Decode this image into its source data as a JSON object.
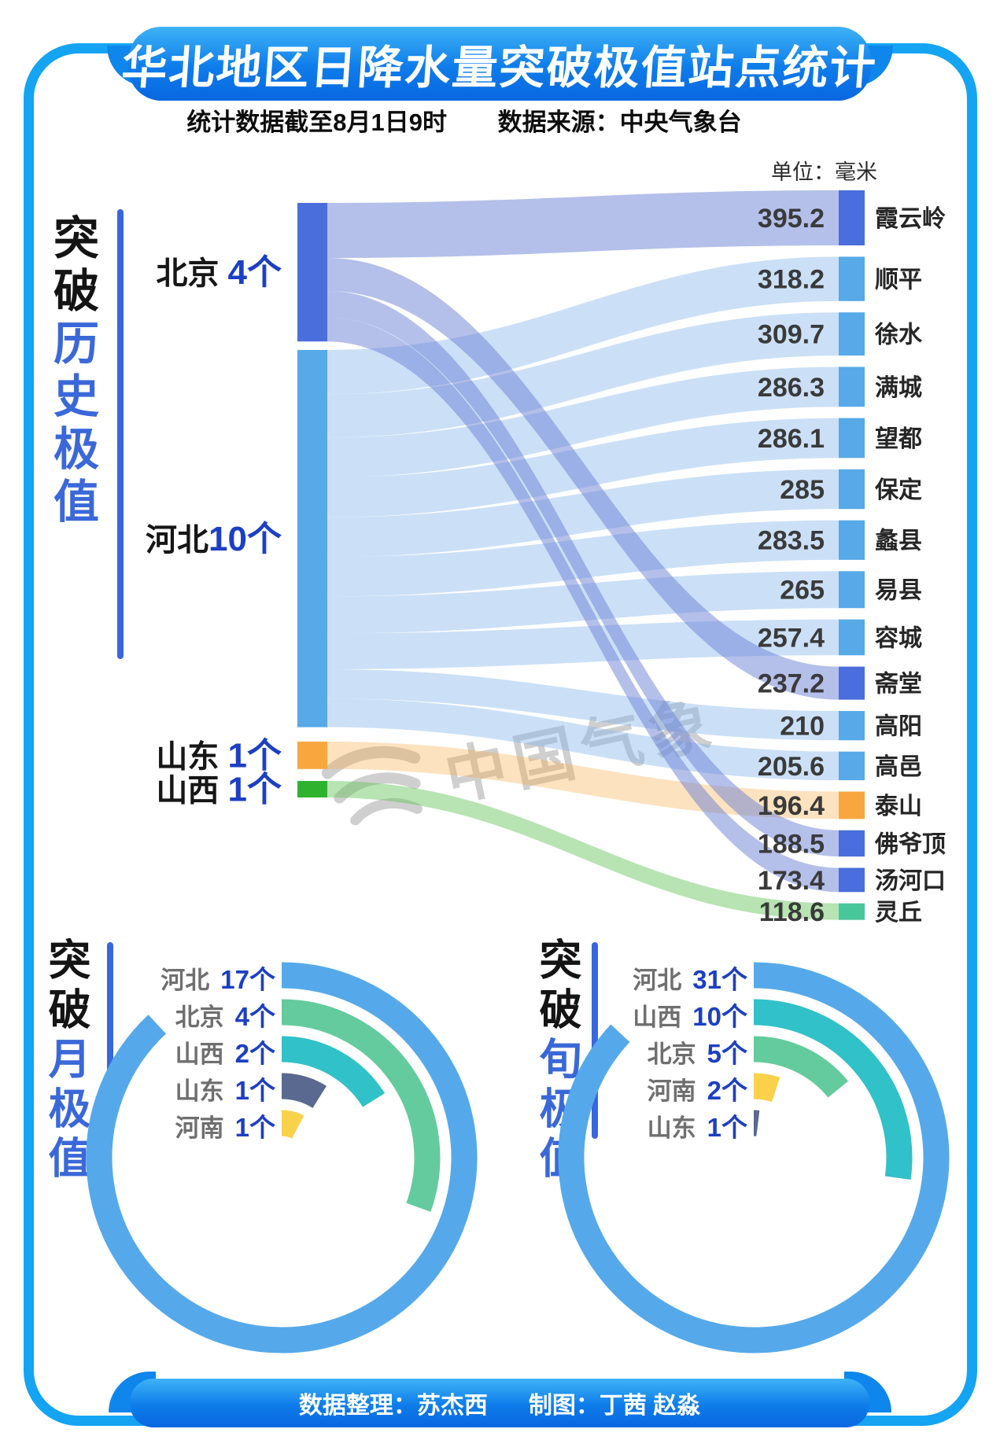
{
  "page": {
    "title": "华北地区日降水量突破极值站点统计",
    "subtitle_left": "统计数据截至8月1日9时",
    "subtitle_right": "数据来源：中央气象台",
    "footer_credit_left": "数据整理：苏杰西",
    "footer_credit_right": "制图：丁茜 赵淼",
    "watermark_text": "中国气象"
  },
  "colors": {
    "frame": "#14a4f2",
    "banner_gradient_top": "#3eb3f6",
    "banner_gradient_bottom": "#0967e0",
    "section_accent_blue": "#3a68d8",
    "count_blue": "#1c3fc4",
    "beijing_node": "#4a6edb",
    "hebei_node": "#57a9e8",
    "shandong_node": "#f7a73d",
    "shanxi_node": "#2fb32f",
    "lingqiu_node": "#48c79b",
    "beijing_flow": "rgba(105,128,214,0.50)",
    "hebei_flow": "rgba(130,180,235,0.42)",
    "shandong_flow": "rgba(246,166,60,0.33)",
    "shanxi_flow": "rgba(95,195,85,0.45)"
  },
  "chart_data": [
    {
      "type": "sankey",
      "section_prefix": "突破",
      "section_main": "历史极值",
      "unit_label": "单位：毫米",
      "unit": "毫米",
      "sources": [
        {
          "name": "北京 ",
          "count": 4,
          "count_label": "4个",
          "key": "北京"
        },
        {
          "name": "河北",
          "count": 10,
          "count_label": "10个",
          "key": "河北"
        },
        {
          "name": "山东 ",
          "count": 1,
          "count_label": "1个",
          "key": "山东"
        },
        {
          "name": "山西 ",
          "count": 1,
          "count_label": "1个",
          "key": "山西"
        }
      ],
      "stations": [
        {
          "name": "霞云岭",
          "value": 395.2,
          "value_label": "395.2",
          "source": "北京"
        },
        {
          "name": "顺平",
          "value": 318.2,
          "value_label": "318.2",
          "source": "河北"
        },
        {
          "name": "徐水",
          "value": 309.7,
          "value_label": "309.7",
          "source": "河北"
        },
        {
          "name": "满城",
          "value": 286.3,
          "value_label": "286.3",
          "source": "河北"
        },
        {
          "name": "望都",
          "value": 286.1,
          "value_label": "286.1",
          "source": "河北"
        },
        {
          "name": "保定",
          "value": 285,
          "value_label": "285",
          "source": "河北"
        },
        {
          "name": "蠡县",
          "value": 283.5,
          "value_label": "283.5",
          "source": "河北"
        },
        {
          "name": "易县",
          "value": 265,
          "value_label": "265",
          "source": "河北"
        },
        {
          "name": "容城",
          "value": 257.4,
          "value_label": "257.4",
          "source": "河北"
        },
        {
          "name": "斋堂",
          "value": 237.2,
          "value_label": "237.2",
          "source": "北京"
        },
        {
          "name": "高阳",
          "value": 210,
          "value_label": "210",
          "source": "河北"
        },
        {
          "name": "高邑",
          "value": 205.6,
          "value_label": "205.6",
          "source": "河北"
        },
        {
          "name": "泰山",
          "value": 196.4,
          "value_label": "196.4",
          "source": "山东"
        },
        {
          "name": "佛爷顶",
          "value": 188.5,
          "value_label": "188.5",
          "source": "北京"
        },
        {
          "name": "汤河口",
          "value": 173.4,
          "value_label": "173.4",
          "source": "北京"
        },
        {
          "name": "灵丘",
          "value": 118.6,
          "value_label": "118.6",
          "source": "山西"
        }
      ]
    },
    {
      "type": "radial-bar",
      "section_prefix": "突破",
      "section_main": "月极值",
      "legend_position": "left-of-arcs",
      "items": [
        {
          "province": "河北",
          "count": 17,
          "count_label": "17个",
          "color": "#55a9ea",
          "sweep_deg": 317
        },
        {
          "province": "北京",
          "count": 4,
          "count_label": "4个",
          "color": "#63cb9d",
          "sweep_deg": 110
        },
        {
          "province": "山西",
          "count": 2,
          "count_label": "2个",
          "color": "#30c1c9",
          "sweep_deg": 58
        },
        {
          "province": "山东",
          "count": 1,
          "count_label": "1个",
          "color": "#59698f",
          "sweep_deg": 32
        },
        {
          "province": "河南",
          "count": 1,
          "count_label": "1个",
          "color": "#f9d14b",
          "sweep_deg": 28
        }
      ]
    },
    {
      "type": "radial-bar",
      "section_prefix": "突破",
      "section_main": "旬极值",
      "legend_position": "left-of-arcs",
      "items": [
        {
          "province": "河北",
          "count": 31,
          "count_label": "31个",
          "color": "#55a9ea",
          "sweep_deg": 313
        },
        {
          "province": "山西",
          "count": 10,
          "count_label": "10个",
          "color": "#30c1c9",
          "sweep_deg": 98
        },
        {
          "province": "北京",
          "count": 5,
          "count_label": "5个",
          "color": "#63cb9d",
          "sweep_deg": 51
        },
        {
          "province": "河南",
          "count": 2,
          "count_label": "2个",
          "color": "#f9d14b",
          "sweep_deg": 18
        },
        {
          "province": "山东",
          "count": 1,
          "count_label": "1个",
          "color": "#59698f",
          "sweep_deg": 7
        }
      ]
    }
  ]
}
